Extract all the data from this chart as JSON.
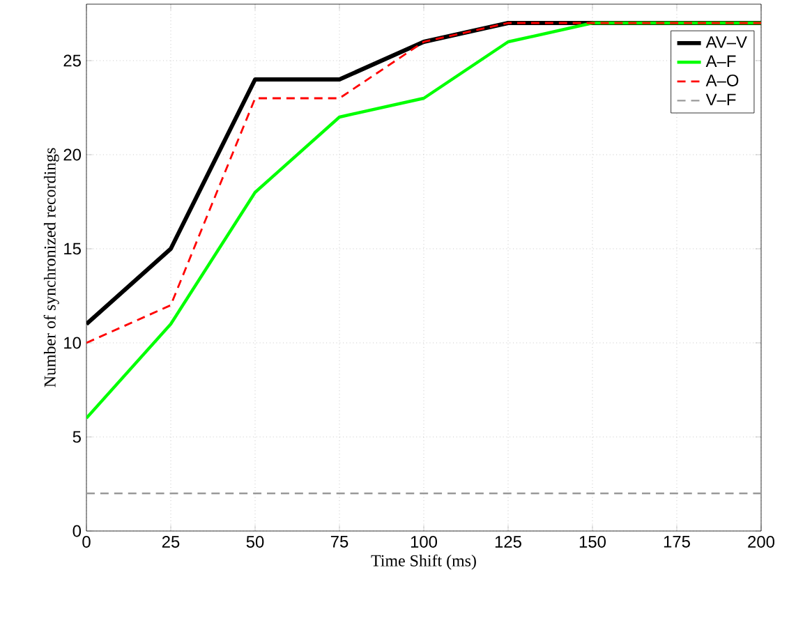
{
  "chart_data": {
    "type": "line",
    "xlabel": "Time Shift (ms)",
    "ylabel": "Number of synchronized recordings",
    "x": [
      0,
      25,
      50,
      75,
      100,
      125,
      150,
      175,
      200
    ],
    "series": [
      {
        "name": "AV–V",
        "color": "#000000",
        "line_style": "solid",
        "values": [
          11,
          15,
          24,
          24,
          26,
          27,
          27,
          27,
          27
        ]
      },
      {
        "name": "A–F",
        "color": "#00ff00",
        "line_style": "solid",
        "values": [
          6,
          11,
          18,
          22,
          23,
          26,
          27,
          27,
          27
        ]
      },
      {
        "name": "A–O",
        "color": "#ff0000",
        "line_style": "dashed",
        "values": [
          10,
          12,
          23,
          23,
          26,
          27,
          27,
          27,
          27
        ]
      },
      {
        "name": "V–F",
        "color": "#999999",
        "line_style": "dashed",
        "values": [
          2,
          2,
          2,
          2,
          2,
          2,
          2,
          2,
          2
        ]
      }
    ],
    "xlim": [
      0,
      200
    ],
    "ylim": [
      0,
      28
    ],
    "xticks": [
      0,
      25,
      50,
      75,
      100,
      125,
      150,
      175,
      200
    ],
    "yticks": [
      0,
      5,
      10,
      15,
      20,
      25
    ],
    "grid": true,
    "legend": "top right"
  }
}
